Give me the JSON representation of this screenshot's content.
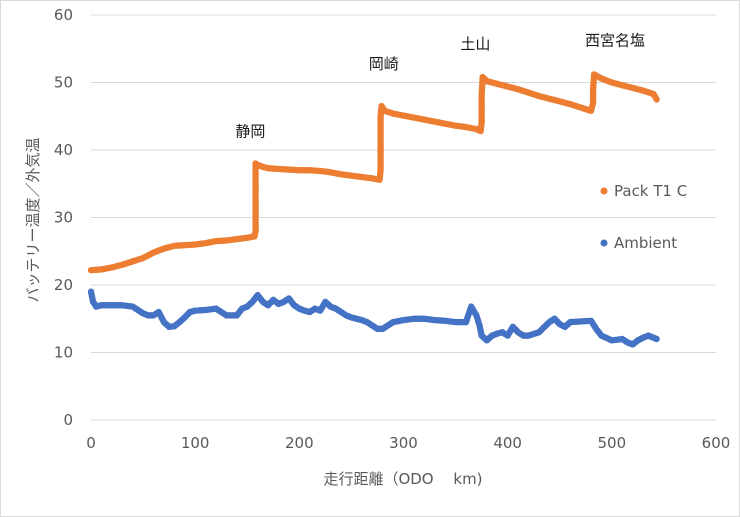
{
  "chart_data": {
    "type": "scatter",
    "title": "",
    "xlabel": "走行距離（ODO　 km)",
    "ylabel": "バッテリー温度／外気温",
    "xlim": [
      0,
      600
    ],
    "ylim": [
      0,
      60
    ],
    "x_ticks": [
      0,
      100,
      200,
      300,
      400,
      500,
      600
    ],
    "y_ticks": [
      0,
      10,
      20,
      30,
      40,
      50,
      60
    ],
    "grid": "horizontal",
    "legend_position": "right",
    "annotations": [
      {
        "text": "静岡",
        "x": 153,
        "y": 42
      },
      {
        "text": "岡崎",
        "x": 281,
        "y": 52
      },
      {
        "text": "土山",
        "x": 369,
        "y": 55
      },
      {
        "text": "西宮名塩",
        "x": 503,
        "y": 55.5
      }
    ],
    "series": [
      {
        "name": "Pack T1 C",
        "color": "#ED7D31",
        "points": [
          [
            0,
            22.2
          ],
          [
            10,
            22.3
          ],
          [
            20,
            22.6
          ],
          [
            30,
            23
          ],
          [
            40,
            23.5
          ],
          [
            50,
            24
          ],
          [
            60,
            24.8
          ],
          [
            70,
            25.4
          ],
          [
            80,
            25.8
          ],
          [
            90,
            25.9
          ],
          [
            100,
            26
          ],
          [
            110,
            26.2
          ],
          [
            120,
            26.5
          ],
          [
            130,
            26.6
          ],
          [
            140,
            26.8
          ],
          [
            150,
            27
          ],
          [
            157,
            27.2
          ],
          [
            158,
            28
          ],
          [
            158,
            30
          ],
          [
            158,
            32
          ],
          [
            158,
            34
          ],
          [
            158,
            36
          ],
          [
            158,
            38
          ],
          [
            160,
            37.8
          ],
          [
            165,
            37.5
          ],
          [
            170,
            37.3
          ],
          [
            180,
            37.2
          ],
          [
            190,
            37.1
          ],
          [
            200,
            37
          ],
          [
            210,
            37
          ],
          [
            220,
            36.9
          ],
          [
            230,
            36.7
          ],
          [
            240,
            36.4
          ],
          [
            250,
            36.2
          ],
          [
            260,
            36
          ],
          [
            270,
            35.8
          ],
          [
            277,
            35.6
          ],
          [
            278,
            37
          ],
          [
            278,
            39
          ],
          [
            278,
            41
          ],
          [
            278,
            43
          ],
          [
            278,
            45
          ],
          [
            279,
            46.5
          ],
          [
            282,
            45.8
          ],
          [
            290,
            45.4
          ],
          [
            300,
            45.1
          ],
          [
            310,
            44.8
          ],
          [
            320,
            44.5
          ],
          [
            330,
            44.2
          ],
          [
            340,
            43.9
          ],
          [
            350,
            43.6
          ],
          [
            360,
            43.4
          ],
          [
            370,
            43.1
          ],
          [
            374,
            42.8
          ],
          [
            375,
            44
          ],
          [
            375,
            46
          ],
          [
            375,
            48
          ],
          [
            376,
            50.8
          ],
          [
            380,
            50.2
          ],
          [
            390,
            49.8
          ],
          [
            400,
            49.4
          ],
          [
            410,
            49
          ],
          [
            420,
            48.5
          ],
          [
            430,
            48
          ],
          [
            440,
            47.6
          ],
          [
            450,
            47.2
          ],
          [
            460,
            46.8
          ],
          [
            470,
            46.3
          ],
          [
            480,
            45.8
          ],
          [
            482,
            47
          ],
          [
            482,
            49
          ],
          [
            483,
            51.2
          ],
          [
            490,
            50.6
          ],
          [
            500,
            50
          ],
          [
            510,
            49.6
          ],
          [
            520,
            49.2
          ],
          [
            530,
            48.8
          ],
          [
            540,
            48.3
          ],
          [
            543,
            47.5
          ]
        ]
      },
      {
        "name": "Ambient",
        "color": "#4472C4",
        "points": [
          [
            0,
            19
          ],
          [
            2,
            17.5
          ],
          [
            5,
            16.8
          ],
          [
            10,
            17
          ],
          [
            20,
            17
          ],
          [
            30,
            17
          ],
          [
            40,
            16.8
          ],
          [
            50,
            15.8
          ],
          [
            55,
            15.5
          ],
          [
            60,
            15.5
          ],
          [
            65,
            16
          ],
          [
            70,
            14.5
          ],
          [
            75,
            13.8
          ],
          [
            80,
            13.9
          ],
          [
            85,
            14.5
          ],
          [
            90,
            15.2
          ],
          [
            95,
            16
          ],
          [
            100,
            16.2
          ],
          [
            110,
            16.3
          ],
          [
            120,
            16.5
          ],
          [
            125,
            16
          ],
          [
            130,
            15.5
          ],
          [
            140,
            15.5
          ],
          [
            145,
            16.5
          ],
          [
            150,
            16.8
          ],
          [
            155,
            17.5
          ],
          [
            160,
            18.5
          ],
          [
            165,
            17.5
          ],
          [
            170,
            17
          ],
          [
            175,
            17.8
          ],
          [
            180,
            17.2
          ],
          [
            185,
            17.5
          ],
          [
            190,
            18
          ],
          [
            195,
            17
          ],
          [
            200,
            16.5
          ],
          [
            205,
            16.2
          ],
          [
            210,
            16
          ],
          [
            215,
            16.5
          ],
          [
            220,
            16.2
          ],
          [
            225,
            17.5
          ],
          [
            230,
            16.8
          ],
          [
            235,
            16.5
          ],
          [
            240,
            16
          ],
          [
            245,
            15.5
          ],
          [
            250,
            15.2
          ],
          [
            255,
            15
          ],
          [
            260,
            14.8
          ],
          [
            265,
            14.5
          ],
          [
            270,
            14
          ],
          [
            275,
            13.5
          ],
          [
            280,
            13.5
          ],
          [
            285,
            14
          ],
          [
            290,
            14.5
          ],
          [
            300,
            14.8
          ],
          [
            310,
            15
          ],
          [
            320,
            15
          ],
          [
            330,
            14.8
          ],
          [
            340,
            14.7
          ],
          [
            350,
            14.5
          ],
          [
            360,
            14.5
          ],
          [
            365,
            16.8
          ],
          [
            370,
            15.5
          ],
          [
            373,
            14
          ],
          [
            375,
            12.5
          ],
          [
            380,
            11.8
          ],
          [
            385,
            12.5
          ],
          [
            390,
            12.8
          ],
          [
            395,
            13
          ],
          [
            400,
            12.5
          ],
          [
            405,
            13.8
          ],
          [
            410,
            13
          ],
          [
            415,
            12.5
          ],
          [
            420,
            12.5
          ],
          [
            430,
            13
          ],
          [
            440,
            14.5
          ],
          [
            445,
            15
          ],
          [
            450,
            14.2
          ],
          [
            455,
            13.8
          ],
          [
            460,
            14.5
          ],
          [
            470,
            14.6
          ],
          [
            480,
            14.7
          ],
          [
            485,
            13.5
          ],
          [
            490,
            12.5
          ],
          [
            500,
            11.8
          ],
          [
            510,
            12
          ],
          [
            515,
            11.5
          ],
          [
            520,
            11.2
          ],
          [
            525,
            11.8
          ],
          [
            530,
            12.2
          ],
          [
            535,
            12.5
          ],
          [
            540,
            12.2
          ],
          [
            543,
            12
          ]
        ]
      }
    ]
  }
}
